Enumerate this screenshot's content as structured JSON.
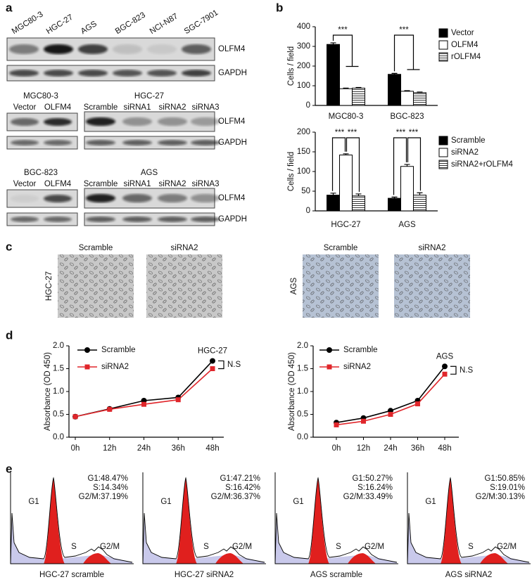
{
  "panel_labels": [
    "a",
    "b",
    "c",
    "d",
    "e"
  ],
  "blots": {
    "top": {
      "lanes": [
        "MGC80-3",
        "HGC-27",
        "AGS",
        "BGC-823",
        "NCI-N87",
        "SGC-7901"
      ],
      "proteins": [
        "OLFM4",
        "GAPDH"
      ]
    },
    "mid_left": {
      "cell_line": "MGC80-3",
      "lanes": [
        "Vector",
        "OLFM4"
      ]
    },
    "mid_right": {
      "cell_line": "HGC-27",
      "lanes": [
        "Scramble",
        "siRNA1",
        "siRNA2",
        "siRNA3"
      ],
      "proteins": [
        "OLFM4",
        "GAPDH"
      ]
    },
    "bottom_left": {
      "cell_line": "BGC-823",
      "lanes": [
        "Vector",
        "OLFM4"
      ]
    },
    "bottom_right": {
      "cell_line": "AGS",
      "lanes": [
        "Scramble",
        "siRNA1",
        "siRNA2",
        "siRNA3"
      ],
      "proteins": [
        "OLFM4",
        "GAPDH"
      ]
    }
  },
  "chart_data": [
    {
      "type": "bar",
      "y_label": "Cells / field",
      "categories": [
        "MGC80-3",
        "BGC-823"
      ],
      "series": [
        {
          "name": "Vector",
          "color": "#000000",
          "values": [
            310,
            158
          ],
          "errors": [
            8,
            5
          ]
        },
        {
          "name": "OLFM4",
          "color": "#ffffff",
          "values": [
            85,
            72
          ],
          "errors": [
            3,
            3
          ]
        },
        {
          "name": "rOLFM4",
          "color": "#ffffff",
          "hatch": true,
          "values": [
            88,
            65
          ],
          "errors": [
            3,
            3
          ]
        }
      ],
      "ylim": [
        0,
        400
      ],
      "yticks": [
        0,
        100,
        200,
        300,
        400
      ],
      "annotations": [
        "***",
        "***"
      ]
    },
    {
      "type": "bar",
      "y_label": "Cells / field",
      "categories": [
        "HGC-27",
        "AGS"
      ],
      "series": [
        {
          "name": "Scramble",
          "color": "#000000",
          "values": [
            40,
            32
          ],
          "errors": [
            5,
            3
          ]
        },
        {
          "name": "siRNA2",
          "color": "#ffffff",
          "values": [
            142,
            113
          ],
          "errors": [
            3,
            5
          ]
        },
        {
          "name": "siRNA2+rOLFM4",
          "color": "#ffffff",
          "hatch": true,
          "values": [
            38,
            40
          ],
          "errors": [
            5,
            6
          ]
        }
      ],
      "ylim": [
        0,
        200
      ],
      "yticks": [
        0,
        50,
        100,
        150,
        200
      ],
      "annotations": [
        "***",
        "***",
        "***",
        "***"
      ]
    },
    {
      "type": "line",
      "y_label": "Absorbance (OD 450)",
      "categories": [
        "0h",
        "12h",
        "24h",
        "36h",
        "48h"
      ],
      "series": [
        {
          "name": "Scramble",
          "color": "#000000",
          "marker": "circle",
          "values": [
            0.45,
            0.62,
            0.8,
            0.87,
            1.67
          ]
        },
        {
          "name": "siRNA2",
          "color": "#e0262b",
          "marker": "square",
          "values": [
            0.45,
            0.61,
            0.72,
            0.82,
            1.5
          ]
        }
      ],
      "ylim": [
        0,
        2
      ],
      "yticks": [
        {
          "value": 0,
          "label": "0.0"
        },
        0.5,
        {
          "value": 1,
          "label": "1.0"
        },
        1.5,
        {
          "value": 2,
          "label": "2.0"
        }
      ],
      "annotations": [
        "HGC-27",
        "N.S"
      ]
    },
    {
      "type": "line",
      "y_label": "Absorbance (OD 450)",
      "categories": [
        "0h",
        "12h",
        "24h",
        "36h",
        "48h"
      ],
      "series": [
        {
          "name": "Scramble",
          "color": "#000000",
          "marker": "circle",
          "values": [
            0.32,
            0.42,
            0.58,
            0.8,
            1.55
          ]
        },
        {
          "name": "siRNA2",
          "color": "#e0262b",
          "marker": "square",
          "values": [
            0.27,
            0.35,
            0.5,
            0.73,
            1.38
          ]
        }
      ],
      "ylim": [
        0,
        2
      ],
      "yticks": [
        {
          "value": 0,
          "label": "0.0"
        },
        0.5,
        {
          "value": 1,
          "label": "1.0"
        },
        1.5,
        {
          "value": 2,
          "label": "2.0"
        }
      ],
      "annotations": [
        "AGS",
        "N.S"
      ]
    }
  ],
  "micrographs": [
    {
      "cell_line": "HGC-27",
      "conditions": [
        "Scramble",
        "siRNA2"
      ]
    },
    {
      "cell_line": "AGS",
      "conditions": [
        "Scramble",
        "siRNA2"
      ]
    }
  ],
  "flow_peaks": [
    "G1",
    "S",
    "G2/M"
  ],
  "flow": [
    {
      "stats": [
        "G1:48.47%",
        "S:14.34%",
        "G2/M:37.19%"
      ],
      "caption": "HGC-27 scramble"
    },
    {
      "stats": [
        "G1:47.21%",
        "S:16.42%",
        "G2/M:36.37%"
      ],
      "caption": "HGC-27 siRNA2"
    },
    {
      "stats": [
        "G1:50.27%",
        "S:16.24%",
        "G2/M:33.49%"
      ],
      "caption": "AGS scramble"
    },
    {
      "stats": [
        "G1:50.85%",
        "S:19.01%",
        "G2/M:30.13%"
      ],
      "caption": "AGS siRNA2"
    }
  ]
}
